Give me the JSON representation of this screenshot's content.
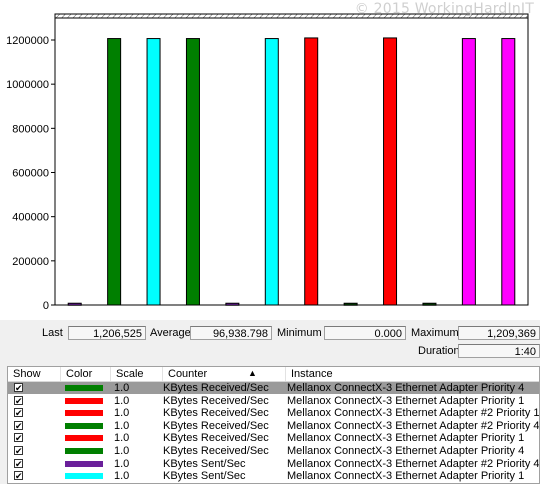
{
  "watermark": "© 2015 WorkingHardInIT",
  "chart_data": {
    "type": "bar",
    "ylim": [
      0,
      1300000
    ],
    "yticks": [
      0,
      200000,
      400000,
      600000,
      800000,
      1000000,
      1200000
    ],
    "ytick_labels": [
      "0",
      "200000",
      "400000",
      "600000",
      "800000",
      "1000000",
      "1200000"
    ],
    "bars": [
      {
        "value": 8000,
        "color": "#6a1f9a"
      },
      {
        "value": 1206525,
        "color": "#007f00"
      },
      {
        "value": 1206525,
        "color": "#00ffff"
      },
      {
        "value": 1206525,
        "color": "#007f00"
      },
      {
        "value": 8000,
        "color": "#6a1f9a"
      },
      {
        "value": 1206525,
        "color": "#00ffff"
      },
      {
        "value": 1209369,
        "color": "#ff0000"
      },
      {
        "value": 8000,
        "color": "#004000"
      },
      {
        "value": 1209369,
        "color": "#ff0000"
      },
      {
        "value": 8000,
        "color": "#004000"
      },
      {
        "value": 1206525,
        "color": "#ff00ff"
      },
      {
        "value": 1206525,
        "color": "#ff00ff"
      }
    ]
  },
  "stats": {
    "last_label": "Last",
    "last_value": "1,206,525",
    "average_label": "Average",
    "average_value": "96,938.798",
    "minimum_label": "Minimum",
    "minimum_value": "0.000",
    "maximum_label": "Maximum",
    "maximum_value": "1,209,369",
    "duration_label": "Duration",
    "duration_value": "1:40"
  },
  "table": {
    "headers": {
      "show": "Show",
      "color": "Color",
      "scale": "Scale",
      "counter": "Counter",
      "instance": "Instance"
    },
    "rows": [
      {
        "checked": "✔",
        "color": "#007f00",
        "scale": "1.0",
        "counter": "KBytes Received/Sec",
        "instance": "Mellanox ConnectX-3 Ethernet Adapter Priority 4",
        "selected": true
      },
      {
        "checked": "✔",
        "color": "#ff0000",
        "scale": "1.0",
        "counter": "KBytes Received/Sec",
        "instance": "Mellanox ConnectX-3 Ethernet Adapter Priority 1",
        "selected": false
      },
      {
        "checked": "✔",
        "color": "#ff0000",
        "scale": "1.0",
        "counter": "KBytes Received/Sec",
        "instance": "Mellanox ConnectX-3 Ethernet Adapter #2 Priority 1",
        "selected": false
      },
      {
        "checked": "✔",
        "color": "#007f00",
        "scale": "1.0",
        "counter": "KBytes Received/Sec",
        "instance": "Mellanox ConnectX-3 Ethernet Adapter #2 Priority 4",
        "selected": false
      },
      {
        "checked": "✔",
        "color": "#ff0000",
        "scale": "1.0",
        "counter": "KBytes Received/Sec",
        "instance": "Mellanox ConnectX-3 Ethernet Adapter Priority 1",
        "selected": false
      },
      {
        "checked": "✔",
        "color": "#007f00",
        "scale": "1.0",
        "counter": "KBytes Received/Sec",
        "instance": "Mellanox ConnectX-3 Ethernet Adapter Priority 4",
        "selected": false
      },
      {
        "checked": "✔",
        "color": "#6a1f9a",
        "scale": "1.0",
        "counter": "KBytes Sent/Sec",
        "instance": "Mellanox ConnectX-3 Ethernet Adapter #2 Priority 4",
        "selected": false
      },
      {
        "checked": "✔",
        "color": "#00ffff",
        "scale": "1.0",
        "counter": "KBytes Sent/Sec",
        "instance": "Mellanox ConnectX-3 Ethernet Adapter Priority 1",
        "selected": false
      }
    ]
  }
}
